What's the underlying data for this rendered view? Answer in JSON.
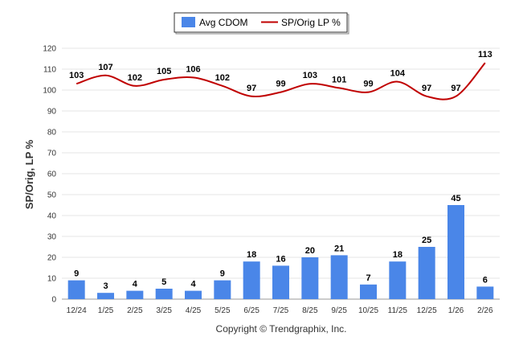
{
  "chart_data": {
    "type": "bar",
    "categories": [
      "12/24",
      "1/25",
      "2/25",
      "3/25",
      "4/25",
      "5/25",
      "6/25",
      "7/25",
      "8/25",
      "9/25",
      "10/25",
      "11/25",
      "12/25",
      "1/26",
      "2/26"
    ],
    "series": [
      {
        "name": "Avg CDOM",
        "kind": "bar",
        "values": [
          9,
          3,
          4,
          5,
          4,
          9,
          18,
          16,
          20,
          21,
          7,
          18,
          25,
          45,
          6
        ],
        "color": "#4a86e8"
      },
      {
        "name": "SP/Orig LP %",
        "kind": "line",
        "values": [
          103,
          107,
          102,
          105,
          106,
          102,
          97,
          99,
          103,
          101,
          99,
          104,
          97,
          97,
          113
        ],
        "color": "#c00000"
      }
    ],
    "ylabel": "SP/Orig, LP %",
    "ylim": [
      0,
      120
    ],
    "yticks": [
      0,
      10,
      20,
      30,
      40,
      50,
      60,
      70,
      80,
      90,
      100,
      110,
      120
    ],
    "grid": true,
    "legend_position": "top-center"
  },
  "footer": {
    "copyright": "Copyright © Trendgraphix, Inc."
  }
}
